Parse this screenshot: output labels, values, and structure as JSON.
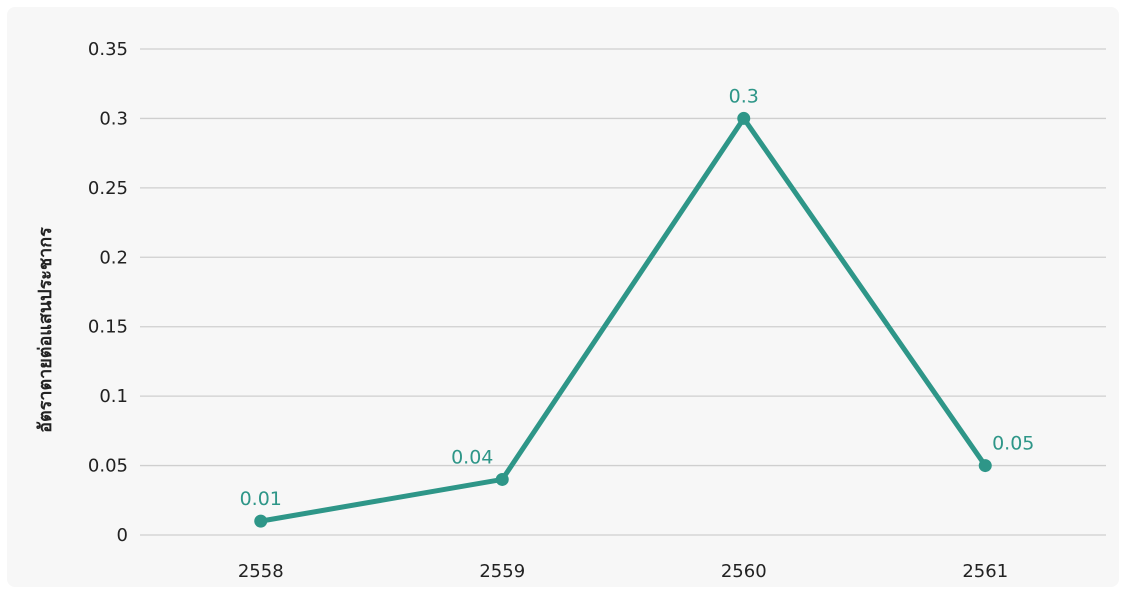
{
  "chart_data": {
    "type": "line",
    "title": "",
    "xlabel": "",
    "ylabel": "อัตราตายต่อแสนประชากร",
    "categories": [
      "2558",
      "2559",
      "2560",
      "2561"
    ],
    "series": [
      {
        "values": [
          0.01,
          0.04,
          0.3,
          0.05
        ],
        "data_labels": [
          "0.01",
          "0.04",
          "0.3",
          "0.05"
        ]
      }
    ],
    "ylim": [
      0,
      0.35
    ],
    "yticks": [
      "0",
      "0.05",
      "0.1",
      "0.15",
      "0.2",
      "0.25",
      "0.3",
      "0.35"
    ],
    "grid": "horizontal",
    "legend": "none",
    "colors": {
      "line": "#2e9688",
      "label": "#2e9688",
      "grid": "#cfcfcf",
      "panel": "#f7f7f7"
    }
  }
}
